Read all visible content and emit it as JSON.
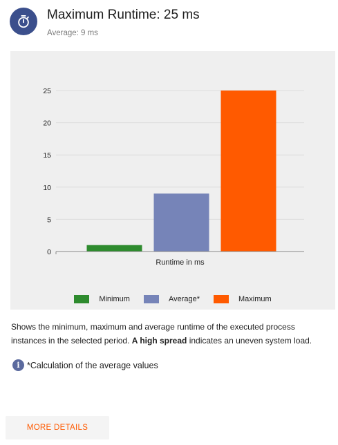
{
  "header": {
    "title": "Maximum Runtime: 25 ms",
    "subtitle": "Average: 9 ms",
    "icon": "stopwatch-icon",
    "icon_bg": "#3b4f8c"
  },
  "chart_data": {
    "type": "bar",
    "categories": [
      "Minimum",
      "Average*",
      "Maximum"
    ],
    "values": [
      1,
      9,
      25
    ],
    "colors": [
      "#2e8b2e",
      "#7684b8",
      "#ff5a00"
    ],
    "xlabel": "Runtime in ms",
    "ylabel": "",
    "ylim": [
      0,
      25
    ],
    "yticks": [
      0,
      5,
      10,
      15,
      20,
      25
    ],
    "grid": true,
    "legend_position": "bottom"
  },
  "legend": [
    {
      "label": "Minimum",
      "color": "#2e8b2e"
    },
    {
      "label": "Average*",
      "color": "#7684b8"
    },
    {
      "label": "Maximum",
      "color": "#ff5a00"
    }
  ],
  "description": {
    "part1": "Shows the minimum, maximum and average runtime of the executed process instances in the selected period. ",
    "bold": "A high spread",
    "part2": " indicates an uneven system load."
  },
  "info": {
    "icon": "info-icon",
    "label": "*Calculation of the average values"
  },
  "actions": {
    "more_details": "MORE DETAILS",
    "accent": "#ff5a00"
  }
}
